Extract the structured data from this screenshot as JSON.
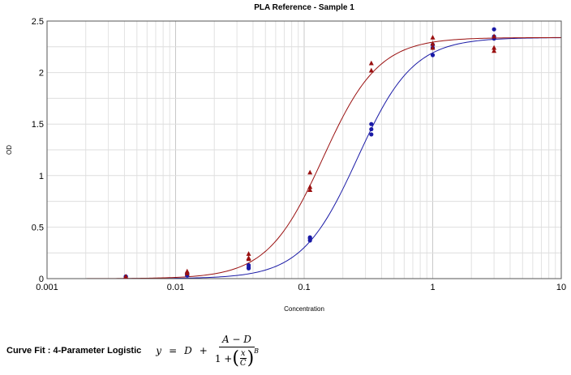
{
  "chart_data": {
    "type": "scatter",
    "title": "PLA Reference - Sample 1",
    "xlabel": "Concentration",
    "ylabel": "OD",
    "x_scale": "log",
    "xlim": [
      0.001,
      10
    ],
    "ylim": [
      0,
      2.5
    ],
    "x_ticks": [
      "0.001",
      "0.01",
      "0.1",
      "1",
      "10"
    ],
    "y_ticks": [
      "0",
      "0.5",
      "1",
      "1.5",
      "2",
      "2.5"
    ],
    "grid": true,
    "legend": "none",
    "series": [
      {
        "color": "#1a1aa6",
        "marker": "circle",
        "points": [
          [
            0.0041,
            0.02
          ],
          [
            0.0041,
            0.02
          ],
          [
            0.0123,
            0.03
          ],
          [
            0.0123,
            0.04
          ],
          [
            0.0123,
            0.05
          ],
          [
            0.037,
            0.1
          ],
          [
            0.037,
            0.11
          ],
          [
            0.037,
            0.13
          ],
          [
            0.111,
            0.37
          ],
          [
            0.111,
            0.39
          ],
          [
            0.111,
            0.4
          ],
          [
            0.333,
            1.4
          ],
          [
            0.333,
            1.45
          ],
          [
            0.333,
            1.5
          ],
          [
            1.0,
            2.17
          ],
          [
            1.0,
            2.24
          ],
          [
            1.0,
            2.27
          ],
          [
            3.0,
            2.33
          ],
          [
            3.0,
            2.35
          ],
          [
            3.0,
            2.42
          ]
        ],
        "fit": {
          "A": 0.0,
          "B": 2.0,
          "C": 0.26,
          "D": 2.34
        }
      },
      {
        "color": "#9a1010",
        "marker": "triangle",
        "points": [
          [
            0.0041,
            0.02
          ],
          [
            0.0123,
            0.05
          ],
          [
            0.0123,
            0.07
          ],
          [
            0.037,
            0.19
          ],
          [
            0.037,
            0.2
          ],
          [
            0.037,
            0.24
          ],
          [
            0.111,
            0.86
          ],
          [
            0.111,
            0.89
          ],
          [
            0.111,
            1.03
          ],
          [
            0.333,
            2.02
          ],
          [
            0.333,
            2.09
          ],
          [
            1.0,
            2.24
          ],
          [
            1.0,
            2.28
          ],
          [
            1.0,
            2.34
          ],
          [
            3.0,
            2.21
          ],
          [
            3.0,
            2.24
          ],
          [
            3.0,
            2.35
          ]
        ],
        "fit": {
          "A": 0.0,
          "B": 2.0,
          "C": 0.14,
          "D": 2.34
        }
      }
    ]
  },
  "formula": {
    "label": "Curve Fit : 4-Parameter Logistic",
    "y": "y",
    "eq": "=",
    "D": "D",
    "plus": "+",
    "numerator": "A − D",
    "den_one": "1 +",
    "x": "x",
    "C": "C",
    "B": "B"
  }
}
